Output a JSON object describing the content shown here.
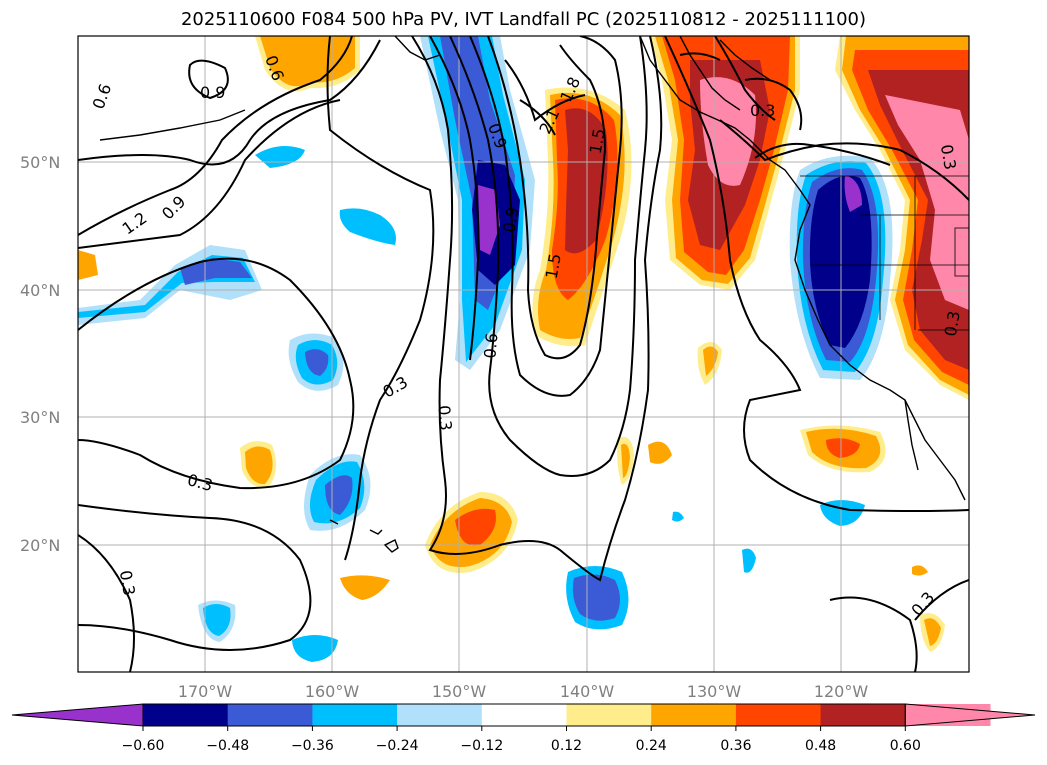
{
  "title": "2025110600 F084 500 hPa PV, IVT Landfall PC (2025110812 - 2025111100)",
  "map": {
    "lat_labels": [
      "50°N",
      "40°N",
      "30°N",
      "20°N"
    ],
    "lon_labels": [
      "170°W",
      "160°W",
      "150°W",
      "140°W",
      "130°W",
      "120°W"
    ],
    "pv_contour_labels": [
      "0.6",
      "0.9",
      "1.2",
      "0.9",
      "0.6",
      "0.9",
      "2.1",
      "1.8",
      "1.5",
      "1.5",
      "0.6",
      "0.9",
      "0.3",
      "0.3",
      "0.3",
      "0.3",
      "0.3",
      "0.3",
      "0.3",
      "0.3"
    ]
  },
  "colorbar": {
    "ticks": [
      "−0.60",
      "−0.48",
      "−0.36",
      "−0.24",
      "−0.12",
      "0.12",
      "0.24",
      "0.36",
      "0.48",
      "0.60"
    ],
    "colors": [
      "#9932cc",
      "#00008b",
      "#3b5bd6",
      "#00bfff",
      "#b0e0fa",
      "#ffffff",
      "#ffec8b",
      "#ffa500",
      "#ff4500",
      "#b22222",
      "#ff88aa",
      "#ff88aa"
    ]
  }
}
